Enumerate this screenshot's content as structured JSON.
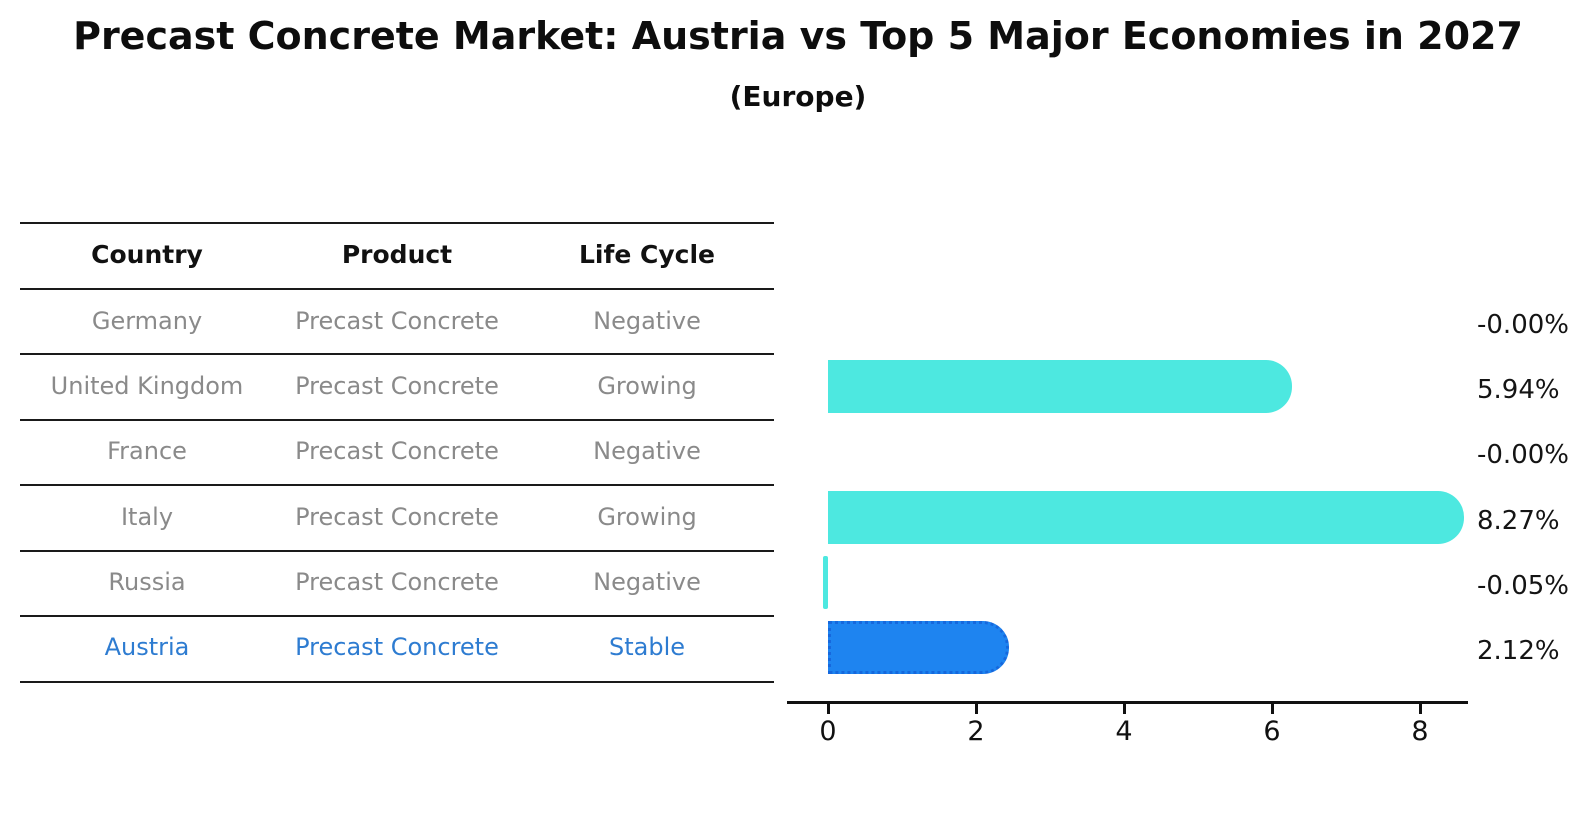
{
  "title": "Precast Concrete Market: Austria vs Top 5 Major Economies in 2027",
  "subtitle": "(Europe)",
  "table": {
    "headers": [
      "Country",
      "Product",
      "Life Cycle"
    ],
    "rows": [
      {
        "country": "Germany",
        "product": "Precast Concrete",
        "life_cycle": "Negative",
        "highlight": false
      },
      {
        "country": "United Kingdom",
        "product": "Precast Concrete",
        "life_cycle": "Growing",
        "highlight": false
      },
      {
        "country": "France",
        "product": "Precast Concrete",
        "life_cycle": "Negative",
        "highlight": false
      },
      {
        "country": "Italy",
        "product": "Precast Concrete",
        "life_cycle": "Growing",
        "highlight": false
      },
      {
        "country": "Russia",
        "product": "Precast Concrete",
        "life_cycle": "Negative",
        "highlight": false
      },
      {
        "country": "Austria",
        "product": "Precast Concrete",
        "life_cycle": "Stable",
        "highlight": true
      }
    ]
  },
  "chart_data": {
    "type": "bar",
    "orientation": "horizontal",
    "title": "Precast Concrete Market: Austria vs Top 5 Major Economies in 2027",
    "subtitle": "(Europe)",
    "categories": [
      "Germany",
      "United Kingdom",
      "France",
      "Italy",
      "Russia",
      "Austria"
    ],
    "values": [
      -0.0,
      5.94,
      -0.0,
      8.27,
      -0.05,
      2.12
    ],
    "value_labels": [
      "-0.00%",
      "5.94%",
      "-0.00%",
      "8.27%",
      "-0.05%",
      "2.12%"
    ],
    "xticks": [
      0,
      2,
      4,
      6,
      8
    ],
    "xlim": [
      0,
      8.65
    ],
    "xlabel": "",
    "ylabel": "",
    "grid": false,
    "legend": "none",
    "highlight_index": 5
  },
  "colors": {
    "bar_default": "#4DE8E0",
    "bar_highlight": "#1E84F0",
    "bar_highlight_border": "#1668DD",
    "highlight_text": "#2E7CD1",
    "row_text": "#8A8A8A",
    "header_text": "#111111",
    "axis": "#111111"
  }
}
